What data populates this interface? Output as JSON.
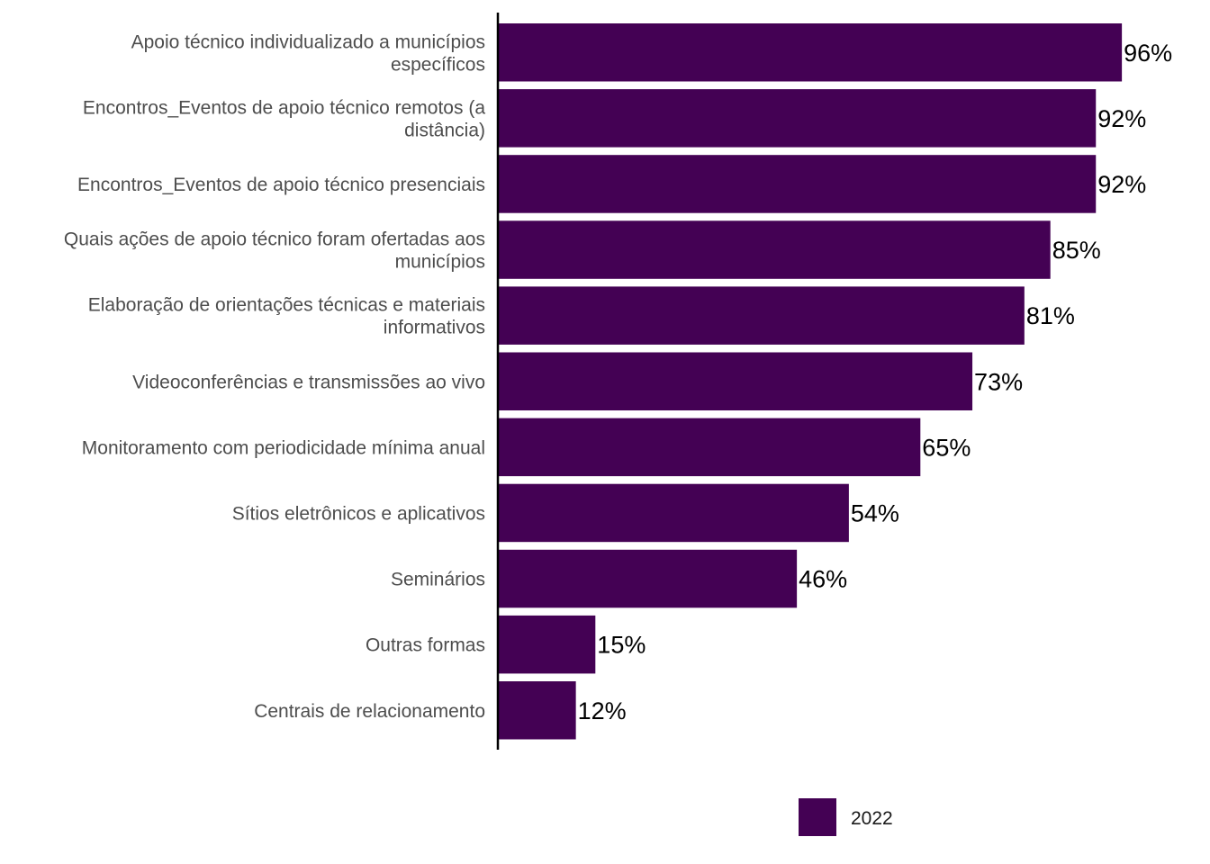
{
  "chart_data": {
    "type": "bar",
    "orientation": "horizontal",
    "categories": [
      "Apoio técnico individualizado a municípios específicos",
      "Encontros_Eventos de apoio técnico remotos (a distância)",
      "Encontros_Eventos de apoio técnico presenciais",
      "Quais ações de apoio técnico foram ofertadas aos municípios",
      "Elaboração de orientações técnicas e materiais informativos",
      "Videoconferências e transmissões ao vivo",
      "Monitoramento com periodicidade mínima anual",
      "Sítios eletrônicos e aplicativos",
      "Seminários",
      "Outras formas",
      "Centrais de relacionamento"
    ],
    "category_lines": [
      [
        "Apoio técnico individualizado a municípios",
        "específicos"
      ],
      [
        "Encontros_Eventos de apoio técnico remotos (a",
        "distância)"
      ],
      [
        "Encontros_Eventos de apoio técnico presenciais"
      ],
      [
        "Quais ações de apoio técnico foram ofertadas aos",
        "municípios"
      ],
      [
        "Elaboração de orientações técnicas e materiais",
        "informativos"
      ],
      [
        "Videoconferências e transmissões ao vivo"
      ],
      [
        "Monitoramento com periodicidade mínima anual"
      ],
      [
        "Sítios eletrônicos e aplicativos"
      ],
      [
        "Seminários"
      ],
      [
        "Outras formas"
      ],
      [
        "Centrais de relacionamento"
      ]
    ],
    "series": [
      {
        "name": "2022",
        "color": "#440154",
        "values": [
          96,
          92,
          92,
          85,
          81,
          73,
          65,
          54,
          46,
          15,
          12
        ],
        "labels": [
          "96%",
          "92%",
          "92%",
          "85%",
          "81%",
          "73%",
          "65%",
          "54%",
          "46%",
          "15%",
          "12%"
        ]
      }
    ],
    "xlim": [
      0,
      100
    ],
    "grid": false,
    "legend_position": "bottom",
    "title": "",
    "xlabel": "",
    "ylabel": ""
  }
}
